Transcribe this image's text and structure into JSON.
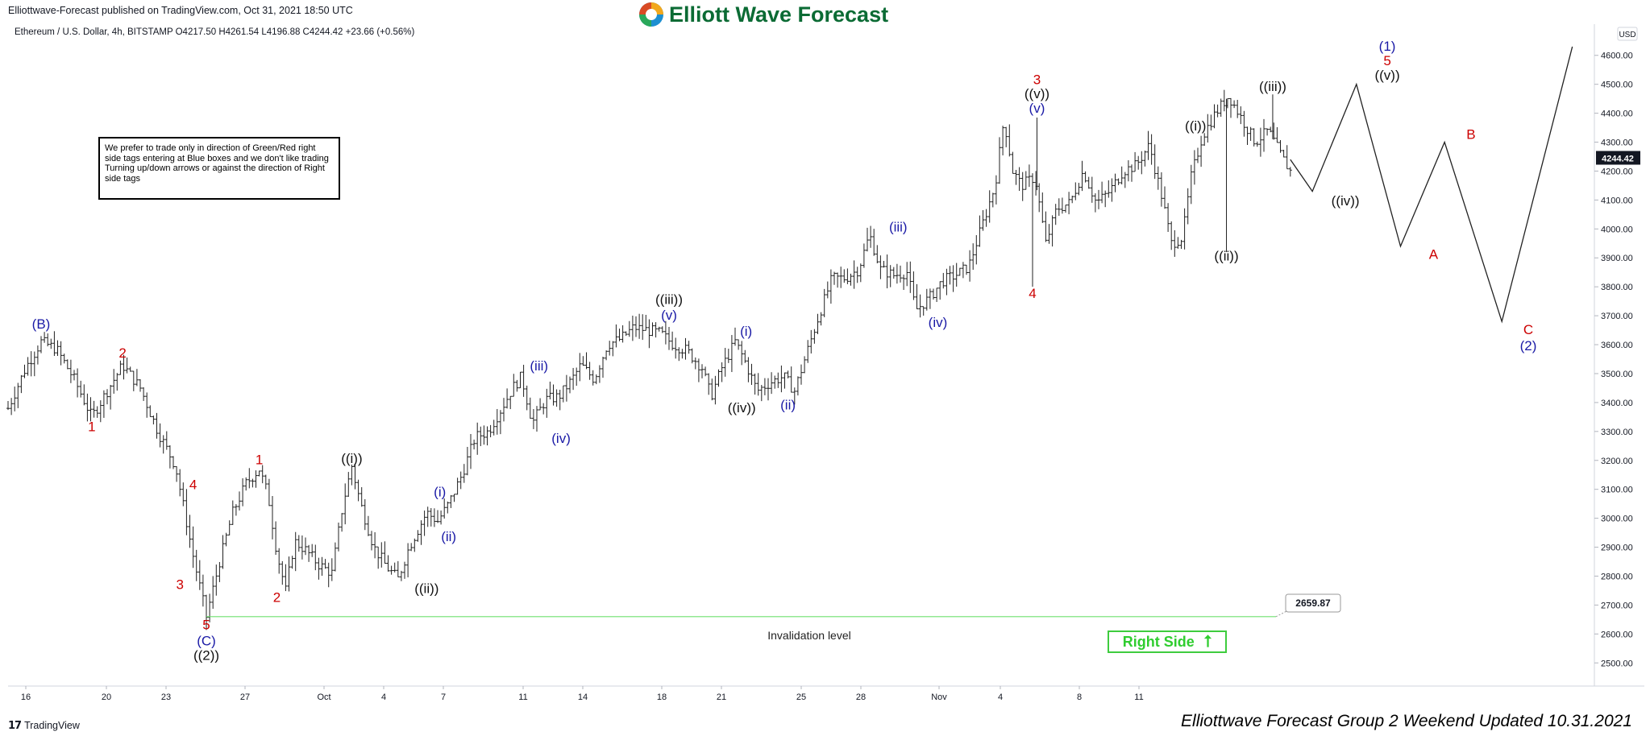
{
  "header": {
    "published": "Elliottwave-Forecast published on TradingView.com, Oct 31, 2021 18:50 UTC",
    "brand": "Elliott Wave Forecast",
    "symbol_line": "Ethereum / U.S. Dollar, 4h, BITSTAMP  O4217.50  H4261.54  L4196.88  C4244.42  +23.66 (+0.56%)"
  },
  "note": {
    "text": "We prefer to trade only in direction of Green/Red right side tags entering at Blue boxes and we don't like trading Turning up/down arrows or against the direction of Right side tags"
  },
  "footer": {
    "tradingview": "TradingView",
    "updated": "Elliottwave Forecast Group 2 Weekend Updated 10.31.2021"
  },
  "right_side_tag": {
    "label": "Right Side",
    "arrow": "⭡"
  },
  "chart_data": {
    "type": "candlestick",
    "title": "",
    "currency_label": "USD",
    "ylim": [
      2420,
      4680
    ],
    "y_ticks": [
      2500,
      2600,
      2700,
      2800,
      2900,
      3000,
      3100,
      3200,
      3300,
      3400,
      3500,
      3600,
      3700,
      3800,
      3900,
      4000,
      4100,
      4200,
      4300,
      4400,
      4500,
      4600
    ],
    "x_ticks": [
      "16",
      "20",
      "23",
      "27",
      "Oct",
      "4",
      "7",
      "11",
      "14",
      "18",
      "21",
      "25",
      "28",
      "Nov",
      "4",
      "8",
      "11"
    ],
    "current_price": "4244.42",
    "invalidation": {
      "value": 2659.87,
      "label": "2659.87",
      "text": "Invalidation level"
    },
    "price_path": [
      [
        0,
        3380
      ],
      [
        8,
        3520
      ],
      [
        15,
        3610
      ],
      [
        22,
        3585
      ],
      [
        30,
        3480
      ],
      [
        38,
        3350
      ],
      [
        45,
        3440
      ],
      [
        52,
        3530
      ],
      [
        60,
        3450
      ],
      [
        68,
        3300
      ],
      [
        76,
        3180
      ],
      [
        84,
        2870
      ],
      [
        90,
        2660
      ],
      [
        96,
        2850
      ],
      [
        102,
        3020
      ],
      [
        108,
        3120
      ],
      [
        114,
        3170
      ],
      [
        118,
        3080
      ],
      [
        122,
        2880
      ],
      [
        126,
        2750
      ],
      [
        130,
        2920
      ],
      [
        135,
        2890
      ],
      [
        141,
        2840
      ],
      [
        147,
        2810
      ],
      [
        152,
        3050
      ],
      [
        156,
        3180
      ],
      [
        160,
        3050
      ],
      [
        166,
        2900
      ],
      [
        172,
        2830
      ],
      [
        177,
        2790
      ],
      [
        182,
        2900
      ],
      [
        186,
        2960
      ],
      [
        190,
        3020
      ],
      [
        195,
        2990
      ],
      [
        200,
        3050
      ],
      [
        206,
        3150
      ],
      [
        212,
        3280
      ],
      [
        218,
        3300
      ],
      [
        224,
        3380
      ],
      [
        229,
        3450
      ],
      [
        233,
        3490
      ],
      [
        238,
        3330
      ],
      [
        244,
        3410
      ],
      [
        250,
        3420
      ],
      [
        256,
        3480
      ],
      [
        260,
        3530
      ],
      [
        266,
        3480
      ],
      [
        272,
        3600
      ],
      [
        278,
        3620
      ],
      [
        284,
        3660
      ],
      [
        290,
        3650
      ],
      [
        296,
        3640
      ],
      [
        302,
        3600
      ],
      [
        308,
        3580
      ],
      [
        315,
        3520
      ],
      [
        319,
        3420
      ],
      [
        324,
        3520
      ],
      [
        330,
        3610
      ],
      [
        334,
        3550
      ],
      [
        340,
        3440
      ],
      [
        346,
        3470
      ],
      [
        352,
        3490
      ],
      [
        357,
        3440
      ],
      [
        362,
        3560
      ],
      [
        368,
        3700
      ],
      [
        374,
        3830
      ],
      [
        380,
        3830
      ],
      [
        386,
        3860
      ],
      [
        391,
        3980
      ],
      [
        396,
        3860
      ],
      [
        402,
        3840
      ],
      [
        408,
        3850
      ],
      [
        412,
        3720
      ],
      [
        418,
        3760
      ],
      [
        424,
        3820
      ],
      [
        430,
        3840
      ],
      [
        436,
        3870
      ],
      [
        442,
        4010
      ],
      [
        448,
        4150
      ],
      [
        452,
        4380
      ],
      [
        456,
        4200
      ],
      [
        460,
        4150
      ],
      [
        466,
        4180
      ],
      [
        471,
        3950
      ],
      [
        476,
        4070
      ],
      [
        482,
        4090
      ],
      [
        488,
        4200
      ],
      [
        494,
        4090
      ],
      [
        500,
        4130
      ],
      [
        506,
        4200
      ],
      [
        512,
        4220
      ],
      [
        518,
        4290
      ],
      [
        524,
        4100
      ],
      [
        528,
        3950
      ],
      [
        533,
        3970
      ],
      [
        537,
        4180
      ],
      [
        542,
        4320
      ],
      [
        548,
        4400
      ],
      [
        554,
        4460
      ],
      [
        560,
        4380
      ],
      [
        566,
        4300
      ],
      [
        572,
        4340
      ],
      [
        578,
        4250
      ],
      [
        582,
        4200
      ]
    ],
    "projection": [
      [
        582,
        4240
      ],
      [
        592,
        4130
      ],
      [
        612,
        4500
      ],
      [
        632,
        3940
      ],
      [
        652,
        4300
      ],
      [
        678,
        3680
      ],
      [
        710,
        4630
      ]
    ],
    "wave_labels": [
      {
        "text": "(B)",
        "x": 15,
        "y": 3645,
        "color": "blue",
        "pos": "above"
      },
      {
        "text": "2",
        "x": 52,
        "y": 3545,
        "color": "red",
        "pos": "above"
      },
      {
        "text": "1",
        "x": 38,
        "y": 3340,
        "color": "red",
        "pos": "below"
      },
      {
        "text": "4",
        "x": 84,
        "y": 3090,
        "color": "red",
        "pos": "above"
      },
      {
        "text": "3",
        "x": 78,
        "y": 2795,
        "color": "red",
        "pos": "below"
      },
      {
        "text": "5",
        "x": 90,
        "y": 2655,
        "color": "red",
        "pos": "below"
      },
      {
        "text": "(C)",
        "x": 90,
        "y": 2600,
        "color": "blue",
        "pos": "below"
      },
      {
        "text": "((2))",
        "x": 90,
        "y": 2550,
        "color": "black",
        "pos": "below"
      },
      {
        "text": "1",
        "x": 114,
        "y": 3175,
        "color": "red",
        "pos": "above"
      },
      {
        "text": "2",
        "x": 122,
        "y": 2750,
        "color": "red",
        "pos": "below"
      },
      {
        "text": "((i))",
        "x": 156,
        "y": 3180,
        "color": "black",
        "pos": "above"
      },
      {
        "text": "((ii))",
        "x": 190,
        "y": 2780,
        "color": "black",
        "pos": "below"
      },
      {
        "text": "(i)",
        "x": 196,
        "y": 3065,
        "color": "blue",
        "pos": "above"
      },
      {
        "text": "(ii)",
        "x": 200,
        "y": 2960,
        "color": "blue",
        "pos": "below"
      },
      {
        "text": "(iii)",
        "x": 241,
        "y": 3500,
        "color": "blue",
        "pos": "above"
      },
      {
        "text": "(iv)",
        "x": 251,
        "y": 3300,
        "color": "blue",
        "pos": "below"
      },
      {
        "text": "((iii))",
        "x": 300,
        "y": 3730,
        "color": "black",
        "pos": "above"
      },
      {
        "text": "(v)",
        "x": 300,
        "y": 3675,
        "color": "blue",
        "pos": "above"
      },
      {
        "text": "((iv))",
        "x": 333,
        "y": 3405,
        "color": "black",
        "pos": "below"
      },
      {
        "text": "(i)",
        "x": 335,
        "y": 3620,
        "color": "blue",
        "pos": "above"
      },
      {
        "text": "(ii)",
        "x": 354,
        "y": 3415,
        "color": "blue",
        "pos": "below"
      },
      {
        "text": "(iii)",
        "x": 404,
        "y": 3980,
        "color": "blue",
        "pos": "above"
      },
      {
        "text": "(iv)",
        "x": 422,
        "y": 3700,
        "color": "blue",
        "pos": "below"
      },
      {
        "text": "3",
        "x": 467,
        "y": 4490,
        "color": "red",
        "pos": "above"
      },
      {
        "text": "((v))",
        "x": 467,
        "y": 4440,
        "color": "black",
        "pos": "above"
      },
      {
        "text": "(v)",
        "x": 467,
        "y": 4390,
        "color": "blue",
        "pos": "above"
      },
      {
        "text": "4",
        "x": 465,
        "y": 3800,
        "color": "red",
        "pos": "below"
      },
      {
        "text": "((i))",
        "x": 539,
        "y": 4330,
        "color": "black",
        "pos": "above"
      },
      {
        "text": "((ii))",
        "x": 553,
        "y": 3930,
        "color": "black",
        "pos": "below"
      },
      {
        "text": "((iii))",
        "x": 574,
        "y": 4465,
        "color": "black",
        "pos": "above"
      },
      {
        "text": "((iv))",
        "x": 607,
        "y": 4120,
        "color": "black",
        "pos": "below"
      },
      {
        "text": "(1)",
        "x": 626,
        "y": 4605,
        "color": "blue",
        "pos": "above"
      },
      {
        "text": "5",
        "x": 626,
        "y": 4555,
        "color": "red",
        "pos": "above"
      },
      {
        "text": "((v))",
        "x": 626,
        "y": 4505,
        "color": "black",
        "pos": "above"
      },
      {
        "text": "B",
        "x": 664,
        "y": 4300,
        "color": "red",
        "pos": "above"
      },
      {
        "text": "A",
        "x": 647,
        "y": 3935,
        "color": "red",
        "pos": "below"
      },
      {
        "text": "C",
        "x": 690,
        "y": 3675,
        "color": "red",
        "pos": "below"
      },
      {
        "text": "(2)",
        "x": 690,
        "y": 3620,
        "color": "blue",
        "pos": "below"
      }
    ]
  },
  "colors": {
    "label_red": "#cc0000",
    "label_blue": "#1a1aa6",
    "label_black": "#111111",
    "invalidation_line": "#6ee06e",
    "brand_green": "#0b6b34",
    "right_side_green": "#2fcd2f"
  }
}
